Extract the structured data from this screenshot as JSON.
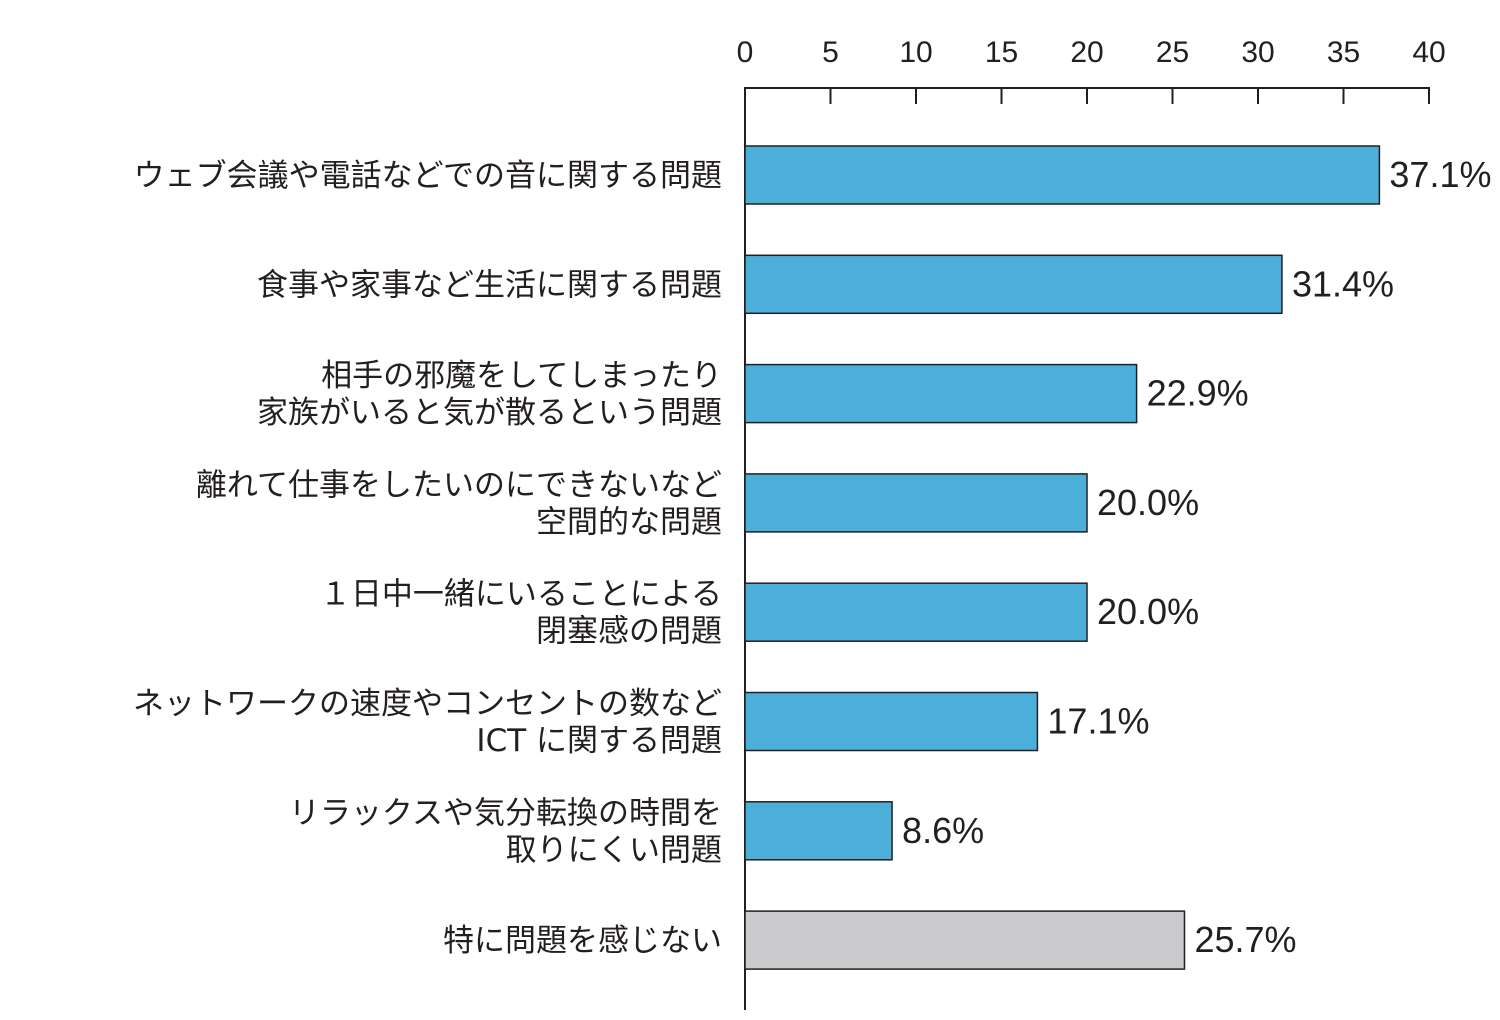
{
  "chart_data": {
    "type": "bar",
    "orientation": "horizontal",
    "categories": [
      [
        "ウェブ会議や電話などでの音に関する問題"
      ],
      [
        "食事や家事など生活に関する問題"
      ],
      [
        "相手の邪魔をしてしまったり",
        "家族がいると気が散るという問題"
      ],
      [
        "離れて仕事をしたいのにできないなど",
        "空間的な問題"
      ],
      [
        "１日中一緒にいることによる",
        "閉塞感の問題"
      ],
      [
        "ネットワークの速度やコンセントの数など",
        "ICT に関する問題"
      ],
      [
        "リラックスや気分転換の時間を",
        "取りにくい問題"
      ],
      [
        "特に問題を感じない"
      ]
    ],
    "values": [
      37.1,
      31.4,
      22.9,
      20.0,
      20.0,
      17.1,
      8.6,
      25.7
    ],
    "value_labels": [
      "37.1%",
      "31.4%",
      "22.9%",
      "20.0%",
      "20.0%",
      "17.1%",
      "8.6%",
      "25.7%"
    ],
    "bar_colors": [
      "#4bafda",
      "#4bafda",
      "#4bafda",
      "#4bafda",
      "#4bafda",
      "#4bafda",
      "#4bafda",
      "#cbcbcd"
    ],
    "xlim": [
      0,
      40
    ],
    "x_ticks": [
      0,
      5,
      10,
      15,
      20,
      25,
      30,
      35,
      40
    ],
    "x_axis_position": "top",
    "grid": false,
    "title": "",
    "xlabel": "",
    "ylabel": ""
  }
}
